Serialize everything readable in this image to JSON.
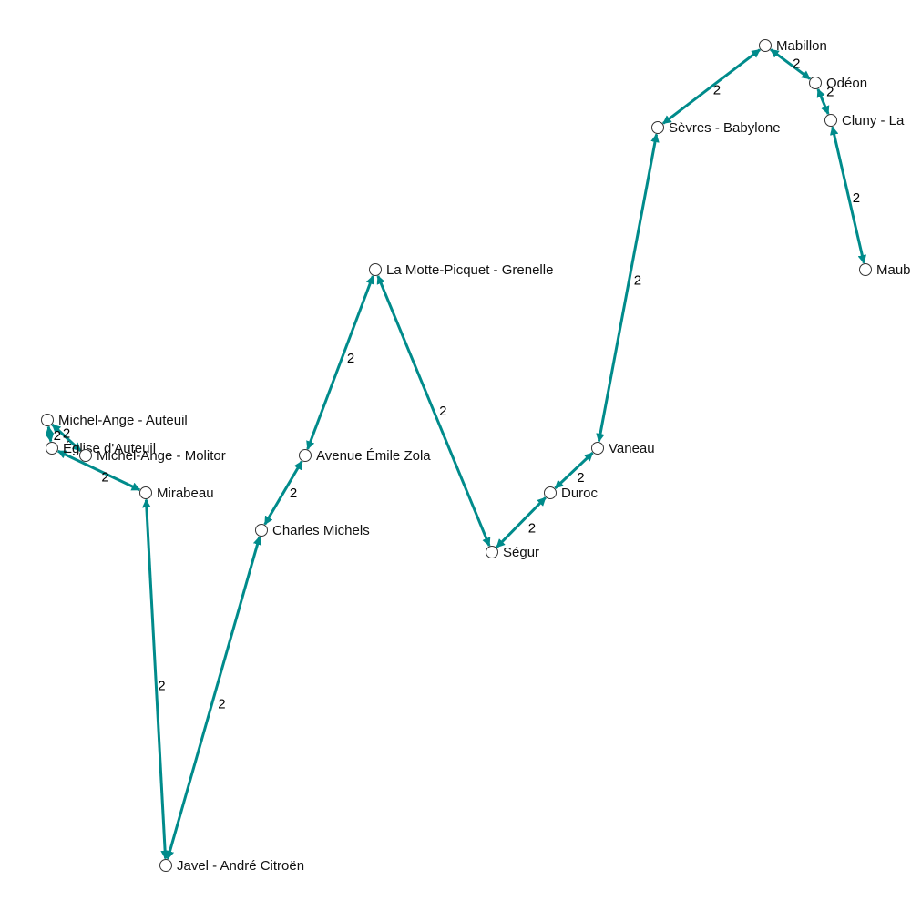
{
  "colors": {
    "edge": "#008b8b",
    "node_fill": "#ffffff",
    "node_stroke": "#333333"
  },
  "nodes": [
    {
      "id": "michel-ange-auteuil",
      "label": "Michel-Ange - Auteuil"
    },
    {
      "id": "eglise-auteuil",
      "label": "Église d'Auteuil"
    },
    {
      "id": "michel-ange-molitor",
      "label": "Michel-Ange - Molitor"
    },
    {
      "id": "mirabeau",
      "label": "Mirabeau"
    },
    {
      "id": "javel",
      "label": "Javel - André Citroën"
    },
    {
      "id": "charles-michels",
      "label": "Charles Michels"
    },
    {
      "id": "avenue-emile-zola",
      "label": "Avenue Émile Zola"
    },
    {
      "id": "la-motte-picquet",
      "label": "La Motte-Picquet - Grenelle"
    },
    {
      "id": "segur",
      "label": "Ségur"
    },
    {
      "id": "duroc",
      "label": "Duroc"
    },
    {
      "id": "vaneau",
      "label": "Vaneau"
    },
    {
      "id": "sevres-babylone",
      "label": "Sèvres - Babylone"
    },
    {
      "id": "mabillon",
      "label": "Mabillon"
    },
    {
      "id": "odeon",
      "label": "Odéon"
    },
    {
      "id": "cluny",
      "label": "Cluny - La"
    },
    {
      "id": "maubert",
      "label": "Maub"
    }
  ],
  "edges": [
    {
      "from": "michel-ange-auteuil",
      "to": "eglise-auteuil",
      "label": "2"
    },
    {
      "from": "michel-ange-auteuil",
      "to": "michel-ange-molitor",
      "label": "2"
    },
    {
      "from": "eglise-auteuil",
      "to": "mirabeau",
      "label": "2"
    },
    {
      "from": "mirabeau",
      "to": "javel",
      "label": "2"
    },
    {
      "from": "javel",
      "to": "charles-michels",
      "label": "2"
    },
    {
      "from": "charles-michels",
      "to": "avenue-emile-zola",
      "label": "2"
    },
    {
      "from": "avenue-emile-zola",
      "to": "la-motte-picquet",
      "label": "2"
    },
    {
      "from": "la-motte-picquet",
      "to": "segur",
      "label": "2"
    },
    {
      "from": "segur",
      "to": "duroc",
      "label": "2"
    },
    {
      "from": "duroc",
      "to": "vaneau",
      "label": "2"
    },
    {
      "from": "vaneau",
      "to": "sevres-babylone",
      "label": "2"
    },
    {
      "from": "sevres-babylone",
      "to": "mabillon",
      "label": "2"
    },
    {
      "from": "mabillon",
      "to": "odeon",
      "label": "2"
    },
    {
      "from": "odeon",
      "to": "cluny",
      "label": "2"
    },
    {
      "from": "cluny",
      "to": "maubert",
      "label": "2"
    }
  ]
}
